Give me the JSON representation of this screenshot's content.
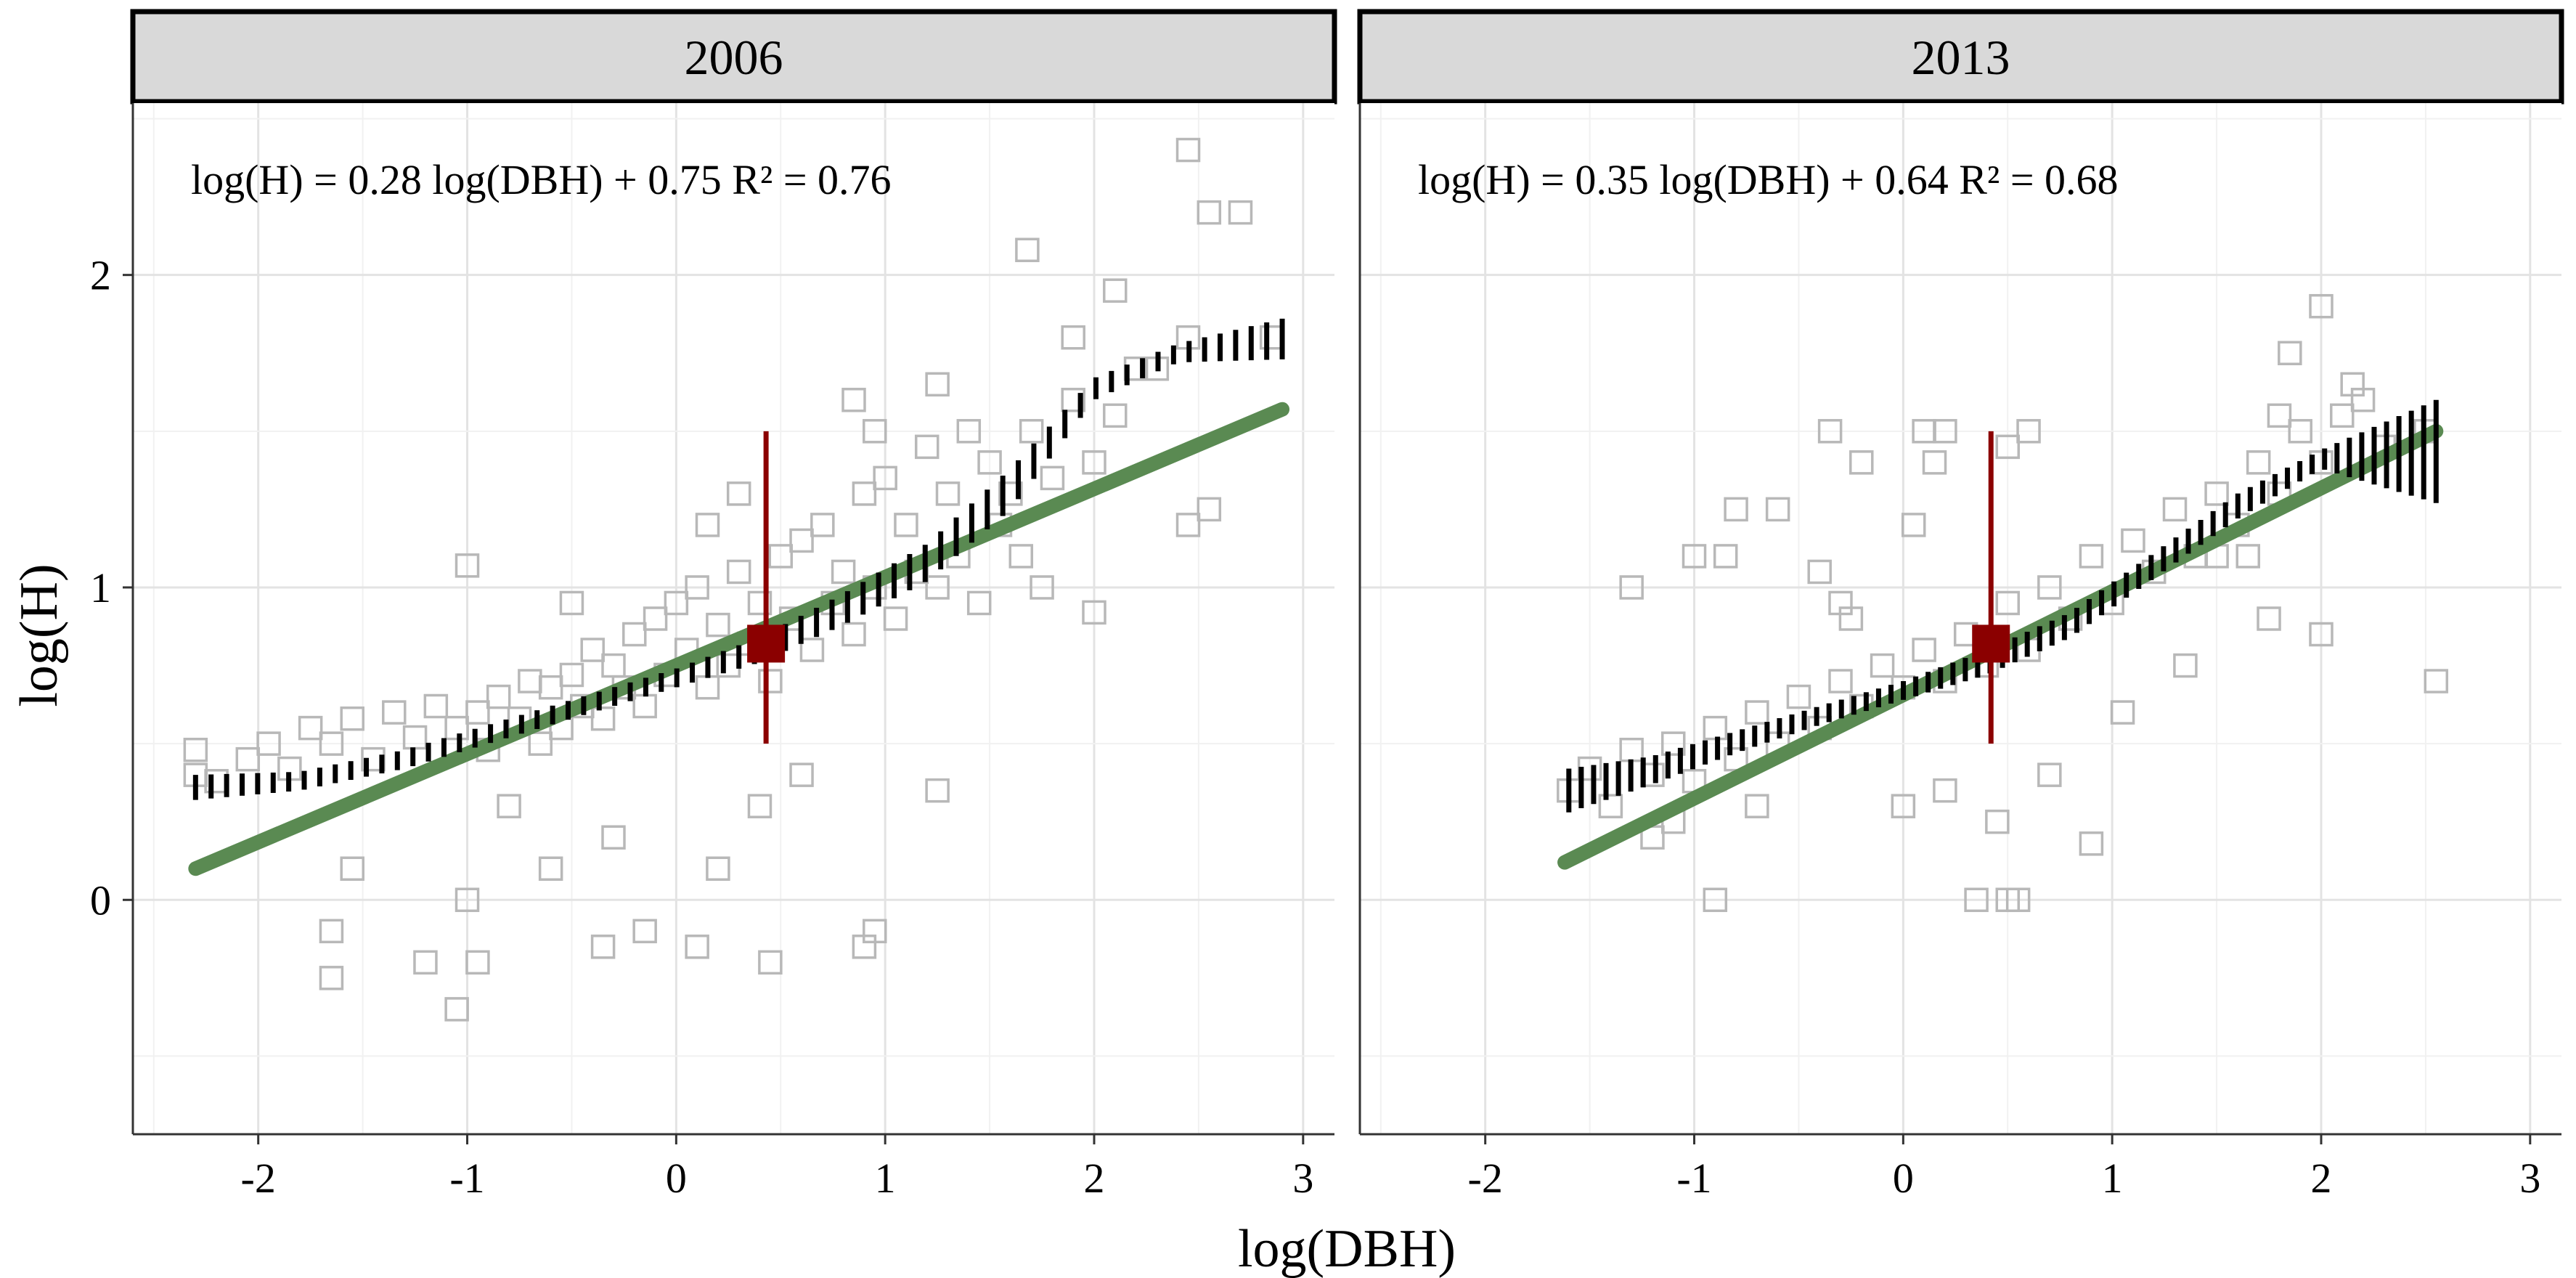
{
  "colors": {
    "background": "#ffffff",
    "strip_fill": "#d9d9d9",
    "grid_major": "#e3e3e3",
    "grid_minor": "#f1f1f1",
    "points": "#b8b8b8",
    "fit_line": "#5a8a52",
    "quantile_band": "#000000",
    "marker": "#8b0000"
  },
  "chart_data": [
    {
      "type": "scatter",
      "panel": "2006",
      "annotation": "log(H) = 0.28 log(DBH) + 0.75 R² = 0.76",
      "xlabel": "log(DBH)",
      "ylabel": "log(H)",
      "xlim": [
        -2.6,
        3.15
      ],
      "ylim": [
        -0.75,
        2.55
      ],
      "xticks": [
        "-2",
        "-1",
        "0",
        "1",
        "2",
        "3"
      ],
      "yticks": [
        "0",
        "1",
        "2"
      ],
      "grid": true,
      "points": [
        [
          -2.3,
          0.48
        ],
        [
          -2.3,
          0.4
        ],
        [
          -2.2,
          0.38
        ],
        [
          -2.05,
          0.45
        ],
        [
          -1.95,
          0.5
        ],
        [
          -1.85,
          0.42
        ],
        [
          -1.75,
          0.55
        ],
        [
          -1.65,
          0.5
        ],
        [
          -1.55,
          0.58
        ],
        [
          -1.45,
          0.45
        ],
        [
          -1.35,
          0.6
        ],
        [
          -1.25,
          0.52
        ],
        [
          -1.15,
          0.62
        ],
        [
          -1.05,
          0.55
        ],
        [
          -0.95,
          0.6
        ],
        [
          -0.9,
          0.48
        ],
        [
          -0.85,
          0.65
        ],
        [
          -0.75,
          0.58
        ],
        [
          -0.7,
          0.7
        ],
        [
          -0.65,
          0.5
        ],
        [
          -0.6,
          0.68
        ],
        [
          -0.55,
          0.55
        ],
        [
          -0.5,
          0.72
        ],
        [
          -0.45,
          0.62
        ],
        [
          -0.4,
          0.8
        ],
        [
          -0.35,
          0.58
        ],
        [
          -0.3,
          0.75
        ],
        [
          -0.25,
          0.68
        ],
        [
          -0.2,
          0.85
        ],
        [
          -0.15,
          0.62
        ],
        [
          -0.1,
          0.9
        ],
        [
          -0.05,
          0.72
        ],
        [
          0.0,
          0.95
        ],
        [
          0.05,
          0.8
        ],
        [
          0.1,
          1.0
        ],
        [
          0.15,
          0.68
        ],
        [
          0.2,
          0.88
        ],
        [
          0.25,
          0.75
        ],
        [
          0.3,
          1.05
        ],
        [
          0.35,
          0.82
        ],
        [
          0.4,
          0.95
        ],
        [
          0.45,
          0.7
        ],
        [
          0.5,
          1.1
        ],
        [
          0.55,
          0.9
        ],
        [
          0.6,
          1.15
        ],
        [
          0.65,
          0.8
        ],
        [
          0.7,
          1.2
        ],
        [
          0.75,
          0.95
        ],
        [
          0.8,
          1.05
        ],
        [
          0.85,
          0.85
        ],
        [
          0.9,
          1.3
        ],
        [
          0.95,
          1.0
        ],
        [
          1.0,
          1.35
        ],
        [
          1.05,
          0.9
        ],
        [
          1.1,
          1.2
        ],
        [
          1.15,
          1.05
        ],
        [
          1.2,
          1.45
        ],
        [
          1.25,
          1.0
        ],
        [
          1.3,
          1.3
        ],
        [
          1.35,
          1.1
        ],
        [
          1.4,
          1.5
        ],
        [
          1.45,
          0.95
        ],
        [
          1.5,
          1.4
        ],
        [
          1.55,
          1.2
        ],
        [
          1.6,
          1.3
        ],
        [
          1.65,
          1.1
        ],
        [
          1.7,
          1.5
        ],
        [
          1.8,
          1.35
        ],
        [
          1.9,
          1.6
        ],
        [
          2.0,
          1.4
        ],
        [
          2.1,
          1.55
        ],
        [
          2.2,
          1.7
        ],
        [
          -1.65,
          -0.1
        ],
        [
          -1.65,
          -0.25
        ],
        [
          -1.2,
          -0.2
        ],
        [
          -1.05,
          -0.35
        ],
        [
          -0.95,
          -0.2
        ],
        [
          -1.55,
          0.1
        ],
        [
          -1.0,
          0.0
        ],
        [
          -0.35,
          -0.15
        ],
        [
          -0.15,
          -0.1
        ],
        [
          0.1,
          -0.15
        ],
        [
          0.45,
          -0.2
        ],
        [
          0.9,
          -0.15
        ],
        [
          0.95,
          -0.1
        ],
        [
          -0.3,
          0.2
        ],
        [
          0.2,
          0.1
        ],
        [
          -0.6,
          0.1
        ],
        [
          1.25,
          0.35
        ],
        [
          -1.0,
          1.07
        ],
        [
          0.15,
          1.2
        ],
        [
          0.3,
          1.3
        ],
        [
          -0.5,
          0.95
        ],
        [
          0.4,
          0.3
        ],
        [
          0.6,
          0.4
        ],
        [
          -0.8,
          0.3
        ],
        [
          2.0,
          0.92
        ],
        [
          1.75,
          1.0
        ],
        [
          2.45,
          1.2
        ],
        [
          2.55,
          1.25
        ],
        [
          2.45,
          2.4
        ],
        [
          2.55,
          2.2
        ],
        [
          2.7,
          2.2
        ],
        [
          1.68,
          2.08
        ],
        [
          2.1,
          1.95
        ],
        [
          1.9,
          1.8
        ],
        [
          2.3,
          1.7
        ],
        [
          2.85,
          1.8
        ],
        [
          2.45,
          1.8
        ],
        [
          0.85,
          1.6
        ],
        [
          1.25,
          1.65
        ],
        [
          0.95,
          1.5
        ]
      ],
      "fit_line": [
        [
          -2.3,
          0.1
        ],
        [
          2.9,
          1.57
        ]
      ],
      "quantile_band": {
        "x": [
          -2.3,
          -1.8,
          -1.3,
          -0.8,
          -0.3,
          0.0,
          0.4,
          0.8,
          1.2,
          1.6,
          2.0,
          2.4,
          2.9
        ],
        "lower": [
          0.32,
          0.35,
          0.42,
          0.52,
          0.62,
          0.68,
          0.76,
          0.88,
          1.02,
          1.25,
          1.6,
          1.72,
          1.73
        ],
        "upper": [
          0.4,
          0.41,
          0.48,
          0.58,
          0.68,
          0.74,
          0.84,
          0.98,
          1.14,
          1.38,
          1.67,
          1.78,
          1.86
        ]
      },
      "marker": {
        "x": 0.43,
        "y": 0.82,
        "ymin": 0.5,
        "ymax": 1.5
      }
    },
    {
      "type": "scatter",
      "panel": "2013",
      "annotation": "log(H) = 0.35 log(DBH) + 0.64 R² = 0.68",
      "xlabel": "log(DBH)",
      "ylabel": "log(H)",
      "xlim": [
        -2.6,
        3.15
      ],
      "ylim": [
        -0.75,
        2.55
      ],
      "xticks": [
        "-2",
        "-1",
        "0",
        "1",
        "2",
        "3"
      ],
      "yticks": [
        "0",
        "1",
        "2"
      ],
      "grid": true,
      "points": [
        [
          -1.6,
          0.35
        ],
        [
          -1.5,
          0.42
        ],
        [
          -1.4,
          0.3
        ],
        [
          -1.3,
          0.48
        ],
        [
          -1.2,
          0.4
        ],
        [
          -1.1,
          0.5
        ],
        [
          -1.0,
          0.38
        ],
        [
          -0.9,
          0.55
        ],
        [
          -0.8,
          0.45
        ],
        [
          -0.7,
          0.6
        ],
        [
          -0.6,
          0.5
        ],
        [
          -0.5,
          0.65
        ],
        [
          -0.4,
          0.55
        ],
        [
          -0.3,
          0.7
        ],
        [
          -0.2,
          0.62
        ],
        [
          -0.1,
          0.75
        ],
        [
          0.0,
          0.68
        ],
        [
          0.1,
          0.8
        ],
        [
          0.2,
          0.7
        ],
        [
          0.3,
          0.85
        ],
        [
          0.4,
          0.75
        ],
        [
          0.5,
          0.95
        ],
        [
          0.6,
          0.8
        ],
        [
          0.7,
          1.0
        ],
        [
          0.8,
          0.9
        ],
        [
          0.9,
          1.1
        ],
        [
          1.0,
          0.95
        ],
        [
          1.1,
          1.15
        ],
        [
          1.2,
          1.05
        ],
        [
          1.3,
          1.25
        ],
        [
          1.4,
          1.1
        ],
        [
          1.5,
          1.3
        ],
        [
          1.6,
          1.2
        ],
        [
          1.7,
          1.4
        ],
        [
          1.8,
          1.3
        ],
        [
          1.9,
          1.5
        ],
        [
          2.0,
          1.4
        ],
        [
          2.1,
          1.55
        ],
        [
          2.2,
          1.6
        ],
        [
          2.3,
          1.45
        ],
        [
          -0.35,
          1.5
        ],
        [
          -0.2,
          1.4
        ],
        [
          0.1,
          1.5
        ],
        [
          0.15,
          1.4
        ],
        [
          0.2,
          1.5
        ],
        [
          -0.8,
          1.25
        ],
        [
          -0.6,
          1.25
        ],
        [
          -1.0,
          1.1
        ],
        [
          -0.85,
          1.1
        ],
        [
          -0.4,
          1.05
        ],
        [
          -0.25,
          0.9
        ],
        [
          0.05,
          1.2
        ],
        [
          -1.3,
          1.0
        ],
        [
          -0.3,
          0.95
        ],
        [
          0.5,
          1.45
        ],
        [
          0.6,
          1.5
        ],
        [
          2.0,
          1.9
        ],
        [
          1.85,
          1.75
        ],
        [
          2.15,
          1.65
        ],
        [
          1.8,
          1.55
        ],
        [
          2.5,
          1.5
        ],
        [
          2.55,
          0.7
        ],
        [
          2.0,
          0.85
        ],
        [
          1.75,
          0.9
        ],
        [
          1.5,
          1.1
        ],
        [
          1.65,
          1.1
        ],
        [
          -0.9,
          0.0
        ],
        [
          0.35,
          0.0
        ],
        [
          0.5,
          0.0
        ],
        [
          0.55,
          0.0
        ],
        [
          0.9,
          0.18
        ],
        [
          0.0,
          0.3
        ],
        [
          -1.2,
          0.2
        ],
        [
          -1.1,
          0.25
        ],
        [
          0.2,
          0.35
        ],
        [
          0.7,
          0.4
        ],
        [
          1.05,
          0.6
        ],
        [
          -0.7,
          0.3
        ],
        [
          0.45,
          0.25
        ],
        [
          1.35,
          0.75
        ]
      ],
      "fit_line": [
        [
          -1.62,
          0.12
        ],
        [
          2.55,
          1.5
        ]
      ],
      "quantile_band": {
        "x": [
          -1.6,
          -1.2,
          -0.8,
          -0.4,
          0.0,
          0.4,
          0.8,
          1.2,
          1.6,
          2.0,
          2.55
        ],
        "lower": [
          0.28,
          0.37,
          0.47,
          0.56,
          0.64,
          0.72,
          0.84,
          1.03,
          1.22,
          1.38,
          1.27
        ],
        "upper": [
          0.42,
          0.46,
          0.54,
          0.62,
          0.7,
          0.8,
          0.92,
          1.11,
          1.3,
          1.44,
          1.6
        ]
      },
      "marker": {
        "x": 0.42,
        "y": 0.82,
        "ymin": 0.5,
        "ymax": 1.5
      }
    }
  ]
}
